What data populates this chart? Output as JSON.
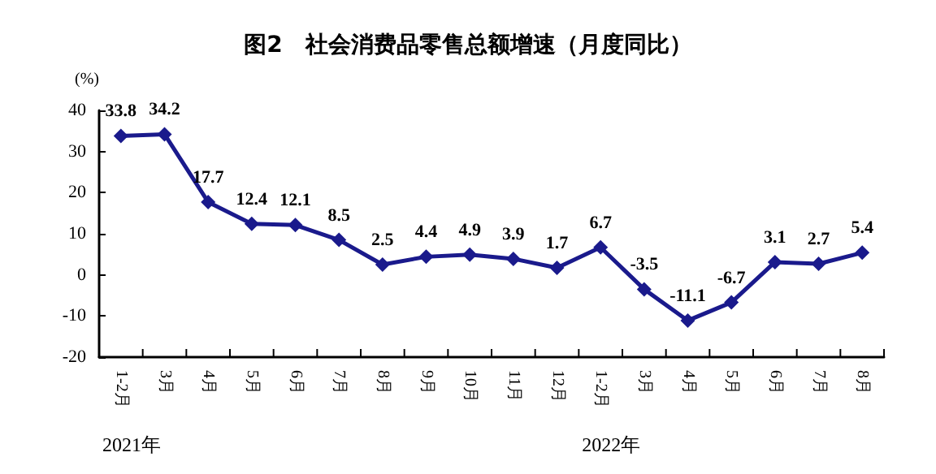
{
  "chart_data": {
    "type": "line",
    "title": "图2　社会消费品零售总额增速（月度同比）",
    "ylabel": "(%)",
    "categories": [
      "1-2月",
      "3月",
      "4月",
      "5月",
      "6月",
      "7月",
      "8月",
      "9月",
      "10月",
      "11月",
      "12月",
      "1-2月",
      "3月",
      "4月",
      "5月",
      "6月",
      "7月",
      "8月"
    ],
    "series": [
      {
        "color": "#1a1a8c",
        "values": [
          33.8,
          34.2,
          17.7,
          12.4,
          12.1,
          8.5,
          2.5,
          4.4,
          4.9,
          3.9,
          1.7,
          6.7,
          -3.5,
          -11.1,
          -6.7,
          3.1,
          2.7,
          5.4
        ]
      }
    ],
    "ylim": [
      -20,
      40
    ],
    "yticks": [
      -20,
      -10,
      0,
      10,
      20,
      30,
      40
    ],
    "marker": "diamond",
    "line_style": "solid",
    "data_labels": true,
    "annotations": [
      "2021年",
      "2022年"
    ]
  }
}
